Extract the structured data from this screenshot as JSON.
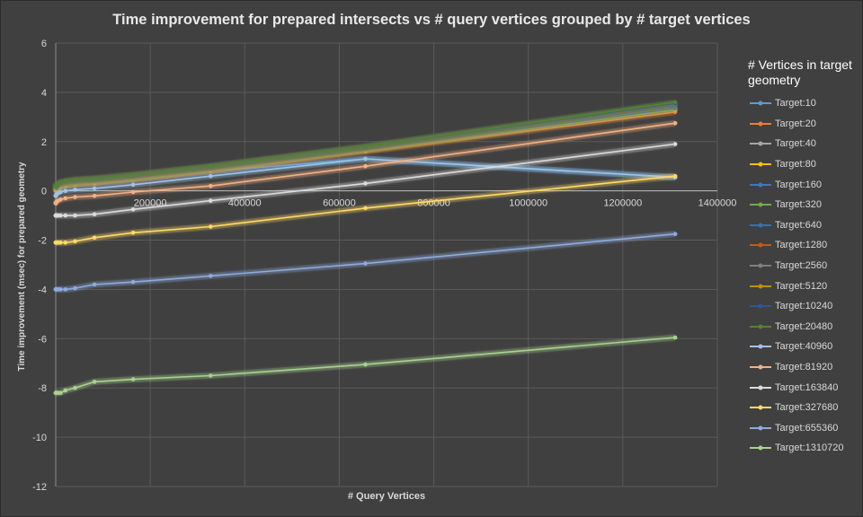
{
  "chart_data": {
    "type": "line",
    "title": "Time improvement for prepared intersects vs # query vertices grouped by # target vertices",
    "xlabel": "# Query Vertices",
    "ylabel": "Time improvement (msec) for prepared  geometry",
    "xlim": [
      0,
      1400000
    ],
    "ylim": [
      -12,
      6
    ],
    "x_ticks": [
      "200000",
      "400000",
      "600000",
      "800000",
      "1000000",
      "1200000",
      "1400000"
    ],
    "y_ticks": [
      "6",
      "4",
      "2",
      "0",
      "-2",
      "-4",
      "-6",
      "-8",
      "-10",
      "-12"
    ],
    "legend_title": "# Vertices in target geometry",
    "x": [
      10,
      20,
      40,
      80,
      160,
      320,
      640,
      1280,
      2560,
      5120,
      10240,
      20480,
      40960,
      81920,
      163840,
      327680,
      655360,
      1310720
    ],
    "series": [
      {
        "name": "Target:10",
        "color": "#5b9bd5",
        "values": [
          0.1,
          0.1,
          0.1,
          0.1,
          0.1,
          0.1,
          0.1,
          0.1,
          0.1,
          0.1,
          0.15,
          0.2,
          0.3,
          0.35,
          0.5,
          0.8,
          1.3,
          0.55
        ]
      },
      {
        "name": "Target:20",
        "color": "#ed7d31",
        "values": [
          0.0,
          0.0,
          0.0,
          0.0,
          0.0,
          0.0,
          0.02,
          0.05,
          0.08,
          0.1,
          0.15,
          0.2,
          0.25,
          0.3,
          0.45,
          0.8,
          1.6,
          3.2
        ]
      },
      {
        "name": "Target:40",
        "color": "#a5a5a5",
        "values": [
          0.05,
          0.05,
          0.05,
          0.05,
          0.05,
          0.05,
          0.07,
          0.1,
          0.12,
          0.15,
          0.2,
          0.25,
          0.3,
          0.35,
          0.5,
          0.85,
          1.65,
          3.3
        ]
      },
      {
        "name": "Target:80",
        "color": "#ffc000",
        "values": [
          0.05,
          0.05,
          0.05,
          0.05,
          0.05,
          0.05,
          0.07,
          0.1,
          0.12,
          0.15,
          0.2,
          0.25,
          0.3,
          0.35,
          0.5,
          0.85,
          1.65,
          3.3
        ]
      },
      {
        "name": "Target:160",
        "color": "#4472c4",
        "values": [
          0.1,
          0.1,
          0.1,
          0.1,
          0.1,
          0.1,
          0.12,
          0.15,
          0.17,
          0.2,
          0.25,
          0.3,
          0.35,
          0.4,
          0.55,
          0.9,
          1.7,
          3.35
        ]
      },
      {
        "name": "Target:320",
        "color": "#70ad47",
        "values": [
          0.1,
          0.1,
          0.1,
          0.1,
          0.1,
          0.1,
          0.12,
          0.15,
          0.17,
          0.2,
          0.25,
          0.3,
          0.35,
          0.4,
          0.55,
          0.9,
          1.7,
          3.4
        ]
      },
      {
        "name": "Target:640",
        "color": "#2e75b6",
        "values": [
          0.15,
          0.15,
          0.15,
          0.15,
          0.15,
          0.15,
          0.17,
          0.2,
          0.22,
          0.25,
          0.3,
          0.35,
          0.4,
          0.45,
          0.6,
          0.95,
          1.75,
          3.45
        ]
      },
      {
        "name": "Target:1280",
        "color": "#c55a11",
        "values": [
          0.15,
          0.15,
          0.15,
          0.15,
          0.15,
          0.15,
          0.17,
          0.2,
          0.22,
          0.25,
          0.3,
          0.35,
          0.4,
          0.45,
          0.6,
          0.95,
          1.75,
          3.5
        ]
      },
      {
        "name": "Target:2560",
        "color": "#7f7f7f",
        "values": [
          0.15,
          0.15,
          0.15,
          0.15,
          0.15,
          0.15,
          0.17,
          0.2,
          0.22,
          0.25,
          0.3,
          0.35,
          0.4,
          0.45,
          0.6,
          0.95,
          1.75,
          3.5
        ]
      },
      {
        "name": "Target:5120",
        "color": "#bf9000",
        "values": [
          0.2,
          0.2,
          0.2,
          0.2,
          0.2,
          0.2,
          0.22,
          0.25,
          0.27,
          0.3,
          0.35,
          0.4,
          0.45,
          0.5,
          0.65,
          1.0,
          1.8,
          3.55
        ]
      },
      {
        "name": "Target:10240",
        "color": "#2f5597",
        "values": [
          0.2,
          0.2,
          0.2,
          0.2,
          0.2,
          0.2,
          0.22,
          0.25,
          0.27,
          0.3,
          0.35,
          0.4,
          0.45,
          0.5,
          0.65,
          1.0,
          1.8,
          3.55
        ]
      },
      {
        "name": "Target:20480",
        "color": "#548235",
        "values": [
          0.2,
          0.2,
          0.2,
          0.2,
          0.2,
          0.2,
          0.22,
          0.25,
          0.27,
          0.3,
          0.35,
          0.4,
          0.45,
          0.5,
          0.65,
          1.0,
          1.8,
          3.6
        ]
      },
      {
        "name": "Target:40960",
        "color": "#9dc3e6",
        "values": [
          -0.2,
          -0.2,
          -0.2,
          -0.2,
          -0.2,
          -0.2,
          -0.18,
          -0.15,
          -0.12,
          -0.1,
          -0.05,
          0.0,
          0.05,
          0.1,
          0.25,
          0.6,
          1.3,
          0.55
        ]
      },
      {
        "name": "Target:81920",
        "color": "#f4b183",
        "values": [
          -0.5,
          -0.5,
          -0.5,
          -0.5,
          -0.5,
          -0.5,
          -0.48,
          -0.45,
          -0.42,
          -0.4,
          -0.35,
          -0.3,
          -0.25,
          -0.2,
          -0.05,
          0.2,
          1.0,
          2.75
        ]
      },
      {
        "name": "Target:163840",
        "color": "#dbdbdb",
        "values": [
          -1.0,
          -1.0,
          -1.0,
          -1.0,
          -1.0,
          -1.0,
          -1.0,
          -1.0,
          -1.0,
          -1.0,
          -1.0,
          -1.0,
          -1.0,
          -0.95,
          -0.75,
          -0.4,
          0.3,
          1.9
        ]
      },
      {
        "name": "Target:327680",
        "color": "#ffd966",
        "values": [
          -2.1,
          -2.1,
          -2.1,
          -2.1,
          -2.1,
          -2.1,
          -2.1,
          -2.1,
          -2.1,
          -2.1,
          -2.1,
          -2.1,
          -2.05,
          -1.9,
          -1.7,
          -1.45,
          -0.7,
          0.6
        ]
      },
      {
        "name": "Target:655360",
        "color": "#8faadc",
        "values": [
          -4.0,
          -4.0,
          -4.0,
          -4.0,
          -4.0,
          -4.0,
          -4.0,
          -4.0,
          -4.0,
          -4.0,
          -4.0,
          -4.0,
          -3.95,
          -3.8,
          -3.7,
          -3.45,
          -2.95,
          -1.75
        ]
      },
      {
        "name": "Target:1310720",
        "color": "#a9d18e",
        "values": [
          -8.2,
          -8.2,
          -8.2,
          -8.2,
          -8.2,
          -8.2,
          -8.2,
          -8.2,
          -8.2,
          -8.2,
          -8.2,
          -8.1,
          -8.0,
          -7.75,
          -7.65,
          -7.5,
          -7.05,
          -5.95
        ]
      }
    ]
  }
}
